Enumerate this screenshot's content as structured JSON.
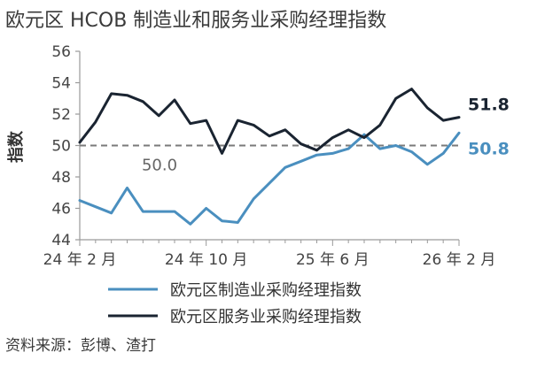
{
  "chart_data": {
    "type": "line",
    "title": "欧元区 HCOB 制造业和服务业采购经理指数",
    "ylabel": "指数",
    "xlabel": "",
    "ylim": [
      44,
      56
    ],
    "yticks": [
      44,
      46,
      48,
      50,
      52,
      54,
      56
    ],
    "xticks": [
      "24 年 2 月",
      "24 年 10 月",
      "25 年 6 月",
      "26 年 2 月"
    ],
    "x": [
      "2024-02",
      "2024-03",
      "2024-04",
      "2024-05",
      "2024-06",
      "2024-07",
      "2024-08",
      "2024-09",
      "2024-10",
      "2024-11",
      "2024-12",
      "2025-01",
      "2025-02",
      "2025-03",
      "2025-04",
      "2025-05",
      "2025-06",
      "2025-07",
      "2025-08",
      "2025-09",
      "2025-10",
      "2025-11",
      "2025-12",
      "2026-01",
      "2026-02"
    ],
    "series": [
      {
        "name": "欧元区制造业采购经理指数",
        "color": "#4a8fbf",
        "values": [
          46.5,
          46.1,
          45.7,
          47.3,
          45.8,
          45.8,
          45.8,
          45.0,
          46.0,
          45.2,
          45.1,
          46.6,
          47.6,
          48.6,
          49.0,
          49.4,
          49.5,
          49.8,
          50.7,
          49.8,
          50.0,
          49.6,
          48.8,
          49.5,
          50.8
        ]
      },
      {
        "name": "欧元区服务业采购经理指数",
        "color": "#1a2431",
        "values": [
          50.2,
          51.5,
          53.3,
          53.2,
          52.8,
          51.9,
          52.9,
          51.4,
          51.6,
          49.5,
          51.6,
          51.3,
          50.6,
          51.0,
          50.1,
          49.7,
          50.5,
          51.0,
          50.5,
          51.3,
          53.0,
          53.6,
          52.4,
          51.6,
          51.8
        ]
      }
    ],
    "reference_line": {
      "value": 50,
      "label": "50.0",
      "style": "dashed",
      "color": "#7a7a7a"
    },
    "end_labels": [
      "50.8",
      "51.8"
    ],
    "legend_position": "bottom"
  },
  "source": "资料来源：彭博、渣打"
}
